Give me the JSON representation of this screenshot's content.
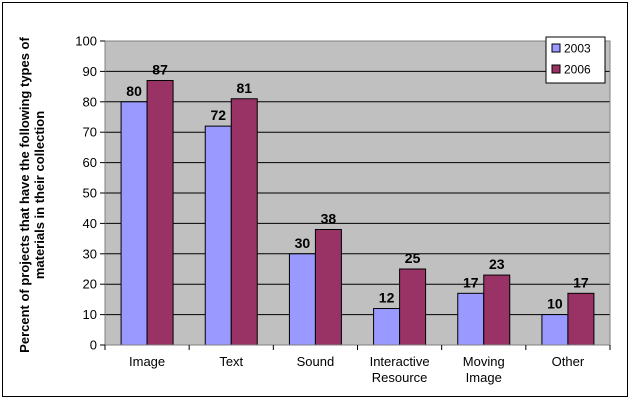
{
  "chart_data": {
    "type": "bar",
    "ylabel": "Percent of projects that have the following types of materials in their collection",
    "xlabel": "",
    "ylim": [
      0,
      100
    ],
    "yticks": [
      0,
      10,
      20,
      30,
      40,
      50,
      60,
      70,
      80,
      90,
      100
    ],
    "grid": true,
    "legend_position": "top-right",
    "categories": [
      [
        "Image"
      ],
      [
        "Text"
      ],
      [
        "Sound"
      ],
      [
        "Interactive",
        "Resource"
      ],
      [
        "Moving",
        "Image"
      ],
      [
        "Other"
      ]
    ],
    "series": [
      {
        "name": "2003",
        "color": "#9999ff",
        "values": [
          80,
          72,
          30,
          12,
          17,
          10
        ]
      },
      {
        "name": "2006",
        "color": "#993366",
        "values": [
          87,
          81,
          38,
          25,
          23,
          17
        ]
      }
    ],
    "plot_background": "#c0c0c0"
  }
}
